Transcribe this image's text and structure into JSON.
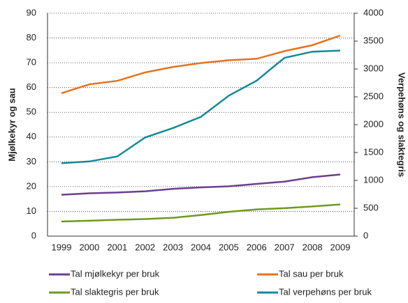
{
  "chart_data": {
    "type": "line",
    "y_label": "Mjølkekyr og sau",
    "y2_label": "Verpehøns og slaktegris",
    "categories": [
      "1999",
      "2000",
      "2001",
      "2002",
      "2003",
      "2004",
      "2005",
      "2006",
      "2007",
      "2008",
      "2009"
    ],
    "ylim": [
      0,
      90
    ],
    "yticks": [
      0,
      10,
      20,
      30,
      40,
      50,
      60,
      70,
      80,
      90
    ],
    "y2lim": [
      0,
      4000
    ],
    "y2ticks": [
      0,
      500,
      1000,
      1500,
      2000,
      2500,
      3000,
      3500,
      4000
    ],
    "grid": true,
    "series": [
      {
        "name": "Tal mjølkekyr per bruk",
        "color": "#6b3f8f",
        "values": [
          16.7,
          17.3,
          17.6,
          18.1,
          19.1,
          19.7,
          20.1,
          21.1,
          22.0,
          23.8,
          24.9
        ]
      },
      {
        "name": "Tal sau per bruk",
        "color": "#e8711f",
        "values": [
          57.7,
          61.3,
          62.7,
          66.1,
          68.3,
          69.9,
          71.0,
          71.6,
          74.7,
          77.1,
          81.0
        ]
      },
      {
        "name": "Tal slaktegris per bruk",
        "color": "#6f9a1f",
        "axis": "y2",
        "values": [
          262,
          276,
          293,
          307,
          329,
          378,
          436,
          480,
          502,
          533,
          569
        ]
      },
      {
        "name": "Tal verpehøns per bruk",
        "color": "#14899a",
        "axis": "y2",
        "values": [
          1310,
          1340,
          1430,
          1770,
          1940,
          2140,
          2520,
          2790,
          3200,
          3310,
          3330
        ]
      }
    ]
  }
}
